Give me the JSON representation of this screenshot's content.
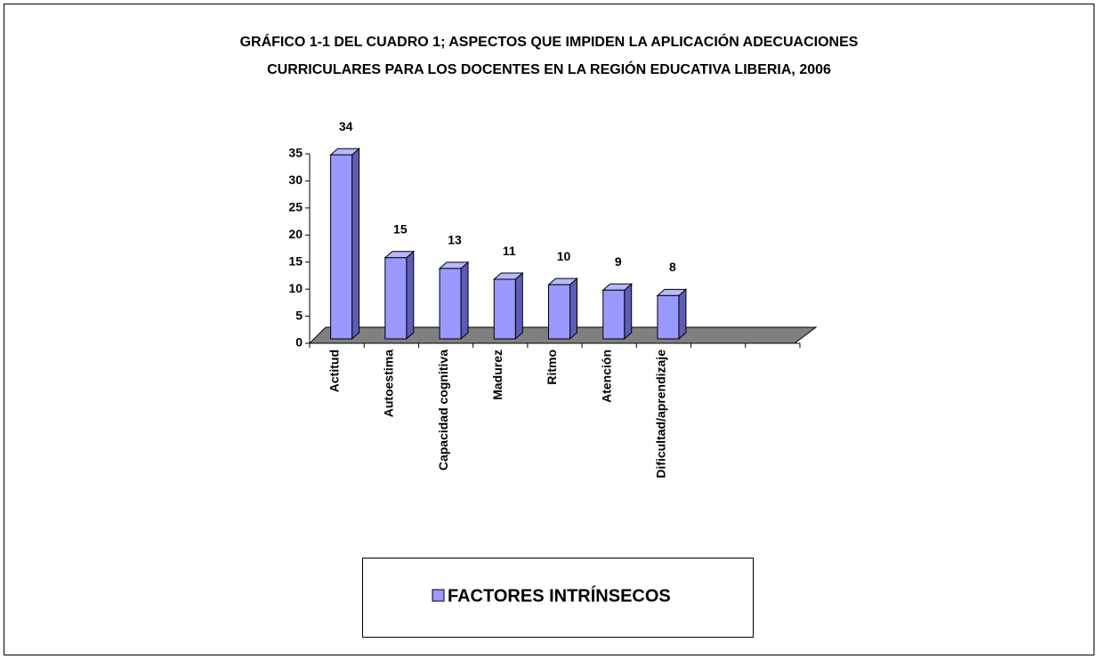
{
  "chart_data": {
    "type": "bar3d",
    "title": [
      "GRÁFICO 1-1 DEL CUADRO 1; ASPECTOS QUE IMPIDEN LA APLICACIÓN ADECUACIONES",
      "CURRICULARES  PARA LOS DOCENTES EN LA REGIÓN EDUCATIVA LIBERIA, 2006"
    ],
    "categories": [
      "Actitud",
      "Autoestima",
      "Capacidad cognitiva",
      "Madurez",
      "Ritmo",
      "Atención",
      "Dificultad/aprendizaje",
      null,
      null
    ],
    "series": [
      {
        "name": "FACTORES INTRÍNSECOS",
        "color": "#9999ff",
        "values": [
          34,
          15,
          13,
          11,
          10,
          9,
          8,
          null,
          null
        ]
      }
    ],
    "ylim": [
      0,
      35
    ],
    "yticks": [
      0,
      5,
      10,
      15,
      20,
      25,
      30,
      35
    ],
    "data_labels": true,
    "legend": "bottom"
  }
}
